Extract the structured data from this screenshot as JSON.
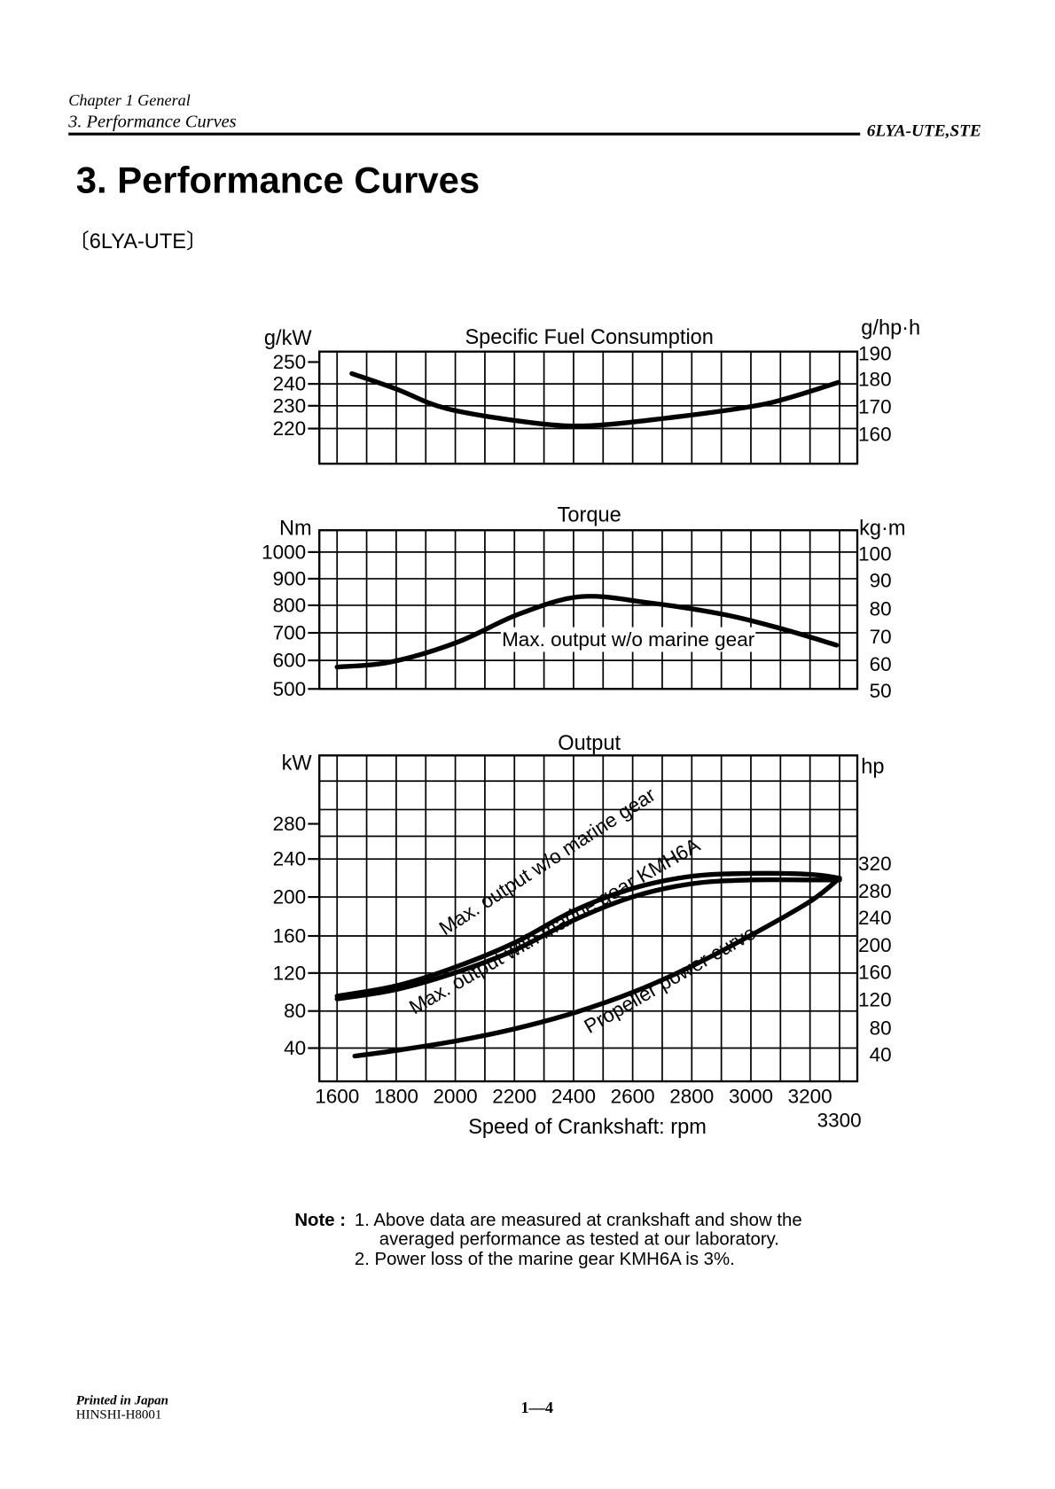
{
  "header": {
    "chapter": "Chapter 1 General",
    "section": "3. Performance Curves",
    "model": "6LYA-UTE,STE"
  },
  "title": "3. Performance Curves",
  "subtitle": "〔6LYA-UTE〕",
  "chart_data": [
    {
      "type": "line",
      "title": "Specific Fuel Consumption",
      "ylabel": "g/kW",
      "ylabel_right": "g/hp·h",
      "yticks": [
        "250",
        "240",
        "230",
        "220"
      ],
      "yticks_right": [
        "190",
        "180",
        "170",
        "160"
      ],
      "xlim": [
        1540,
        3360
      ],
      "ylim": [
        204,
        255
      ],
      "series": [
        {
          "name": "SFC",
          "points": [
            [
              1650,
              245
            ],
            [
              1800,
              238
            ],
            [
              1973,
              229
            ],
            [
              2262,
              222.6
            ],
            [
              2455,
              221.3
            ],
            [
              2711,
              224.7
            ],
            [
              3000,
              230
            ],
            [
              3129,
              234
            ],
            [
              3296,
              241
            ]
          ]
        }
      ]
    },
    {
      "type": "line",
      "title": "Torque",
      "ylabel": "Nm",
      "ylabel_right": "kg·m",
      "yticks": [
        "1000",
        "900",
        "800",
        "700",
        "600",
        "500"
      ],
      "yticks_right": [
        "100",
        "90",
        "80",
        "70",
        "60",
        "50"
      ],
      "xlim": [
        1540,
        3360
      ],
      "ylim": [
        500,
        1080
      ],
      "annotation": "Max. output w/o marine gear",
      "series": [
        {
          "name": "Max. output w/o marine gear",
          "points": [
            [
              1600,
              580
            ],
            [
              1780,
              598
            ],
            [
              2005,
              670
            ],
            [
              2214,
              773
            ],
            [
              2422,
              837
            ],
            [
              2647,
              816
            ],
            [
              2904,
              773
            ],
            [
              3097,
              722
            ],
            [
              3290,
              660
            ]
          ]
        }
      ]
    },
    {
      "type": "line",
      "title": "Output",
      "ylabel": "kW",
      "ylabel_right": "hp",
      "yticks": [
        "280",
        "240",
        "200",
        "160",
        "120",
        "80",
        "40"
      ],
      "yticks_right": [
        "320",
        "280",
        "240",
        "200",
        "160",
        "120",
        "80",
        "40"
      ],
      "xlabel": "Speed of Crankshaft: rpm",
      "xticks": [
        "1600",
        "1800",
        "2000",
        "2200",
        "2400",
        "2600",
        "2800",
        "3000",
        "3200"
      ],
      "xtick_extra": "3300",
      "xlim": [
        1540,
        3360
      ],
      "ylim": [
        4,
        352
      ],
      "series": [
        {
          "name": "Max. output w/o marine gear",
          "points": [
            [
              1600,
              95
            ],
            [
              1800,
              106
            ],
            [
              2000,
              126
            ],
            [
              2200,
              152
            ],
            [
              2400,
              186
            ],
            [
              2600,
              210
            ],
            [
              2800,
              223
            ],
            [
              3000,
              226
            ],
            [
              3200,
              225
            ],
            [
              3300,
              221
            ]
          ]
        },
        {
          "name": "Max. output with marine gear KMH6A",
          "points": [
            [
              1600,
              92
            ],
            [
              1800,
              102
            ],
            [
              2000,
              120
            ],
            [
              2200,
              144
            ],
            [
              2400,
              176
            ],
            [
              2600,
              201
            ],
            [
              2800,
              215
            ],
            [
              3000,
              219
            ],
            [
              3200,
              219
            ],
            [
              3300,
              219
            ]
          ]
        },
        {
          "name": "Propeller power curve",
          "points": [
            [
              1660,
              31
            ],
            [
              1800,
              37
            ],
            [
              2000,
              47
            ],
            [
              2200,
              60
            ],
            [
              2400,
              77
            ],
            [
              2600,
              99
            ],
            [
              2800,
              127
            ],
            [
              3000,
              160
            ],
            [
              3200,
              196
            ],
            [
              3300,
              221
            ]
          ]
        }
      ]
    }
  ],
  "note": {
    "label": "Note :",
    "line1": "1. Above data are measured at crankshaft and show the",
    "line1b": "averaged performance as tested at our laboratory.",
    "line2": "2. Power loss of the marine gear KMH6A is 3%."
  },
  "footer": {
    "printed": "Printed in Japan",
    "code": "HINSHI-H8001",
    "page": "1—4"
  }
}
